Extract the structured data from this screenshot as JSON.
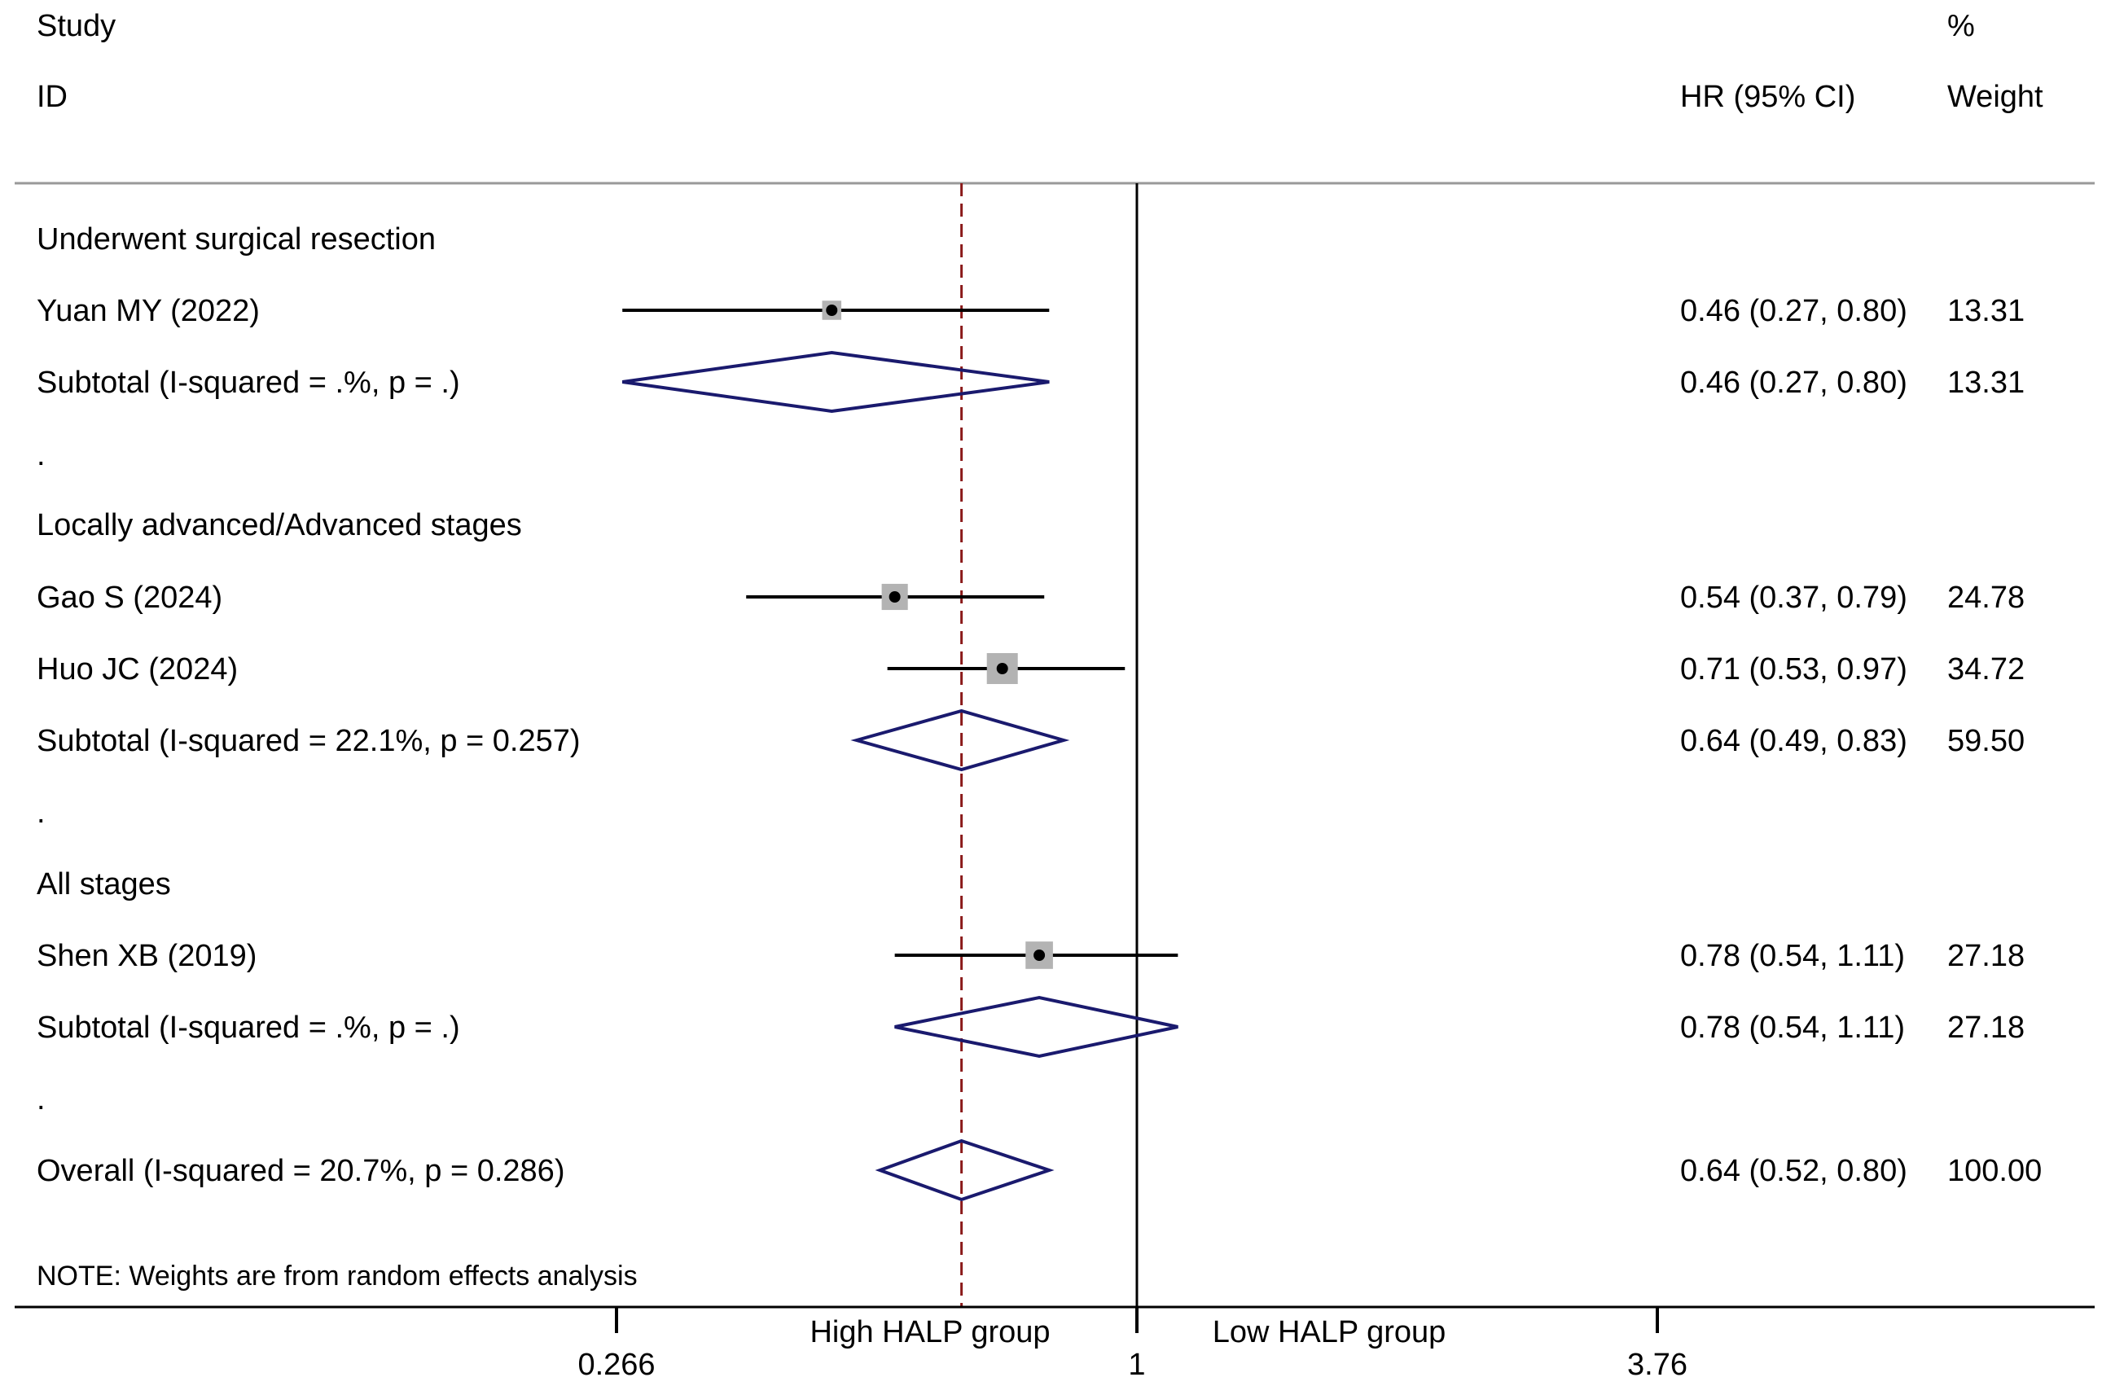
{
  "headers": {
    "study_line1": "Study",
    "study_line2": "ID",
    "pct_line1": "%",
    "ci_line2": "HR (95% CI)",
    "weight_line2": "Weight"
  },
  "note": "NOTE: Weights are from random effects analysis",
  "axis": {
    "tick_labels": [
      "0.266",
      "1",
      "3.76"
    ],
    "left_label": "High HALP group",
    "right_label": "Low HALP group"
  },
  "chart_data": {
    "type": "forest",
    "scale": "log",
    "xlim": [
      0.266,
      3.76
    ],
    "ticks": [
      0.266,
      1,
      3.76
    ],
    "null_line": 1,
    "overall_line": 0.64,
    "colors": {
      "diamond": "#1a1a6e",
      "overall_line": "#8b1a1a",
      "box_fill": "#b3b3b3",
      "ci_line": "#000000"
    },
    "rows": [
      {
        "kind": "group",
        "label": "Underwent surgical resection"
      },
      {
        "kind": "study",
        "label": "Yuan MY (2022)",
        "hr": 0.46,
        "lo": 0.27,
        "hi": 0.8,
        "weight": 13.31,
        "ci_text": "0.46 (0.27, 0.80)",
        "weight_text": "13.31"
      },
      {
        "kind": "subtotal",
        "label": "Subtotal  (I-squared = .%, p = .)",
        "hr": 0.46,
        "lo": 0.27,
        "hi": 0.8,
        "ci_text": "0.46 (0.27, 0.80)",
        "weight_text": "13.31"
      },
      {
        "kind": "spacer",
        "label": "."
      },
      {
        "kind": "group",
        "label": "Locally advanced/Advanced stages"
      },
      {
        "kind": "study",
        "label": "Gao S (2024)",
        "hr": 0.54,
        "lo": 0.37,
        "hi": 0.79,
        "weight": 24.78,
        "ci_text": "0.54 (0.37, 0.79)",
        "weight_text": "24.78"
      },
      {
        "kind": "study",
        "label": "Huo JC (2024)",
        "hr": 0.71,
        "lo": 0.53,
        "hi": 0.97,
        "weight": 34.72,
        "ci_text": "0.71 (0.53, 0.97)",
        "weight_text": "34.72"
      },
      {
        "kind": "subtotal",
        "label": "Subtotal  (I-squared = 22.1%, p = 0.257)",
        "hr": 0.64,
        "lo": 0.49,
        "hi": 0.83,
        "ci_text": "0.64 (0.49, 0.83)",
        "weight_text": "59.50"
      },
      {
        "kind": "spacer",
        "label": "."
      },
      {
        "kind": "group",
        "label": "All stages"
      },
      {
        "kind": "study",
        "label": "Shen XB (2019)",
        "hr": 0.78,
        "lo": 0.54,
        "hi": 1.11,
        "weight": 27.18,
        "ci_text": "0.78 (0.54, 1.11)",
        "weight_text": "27.18"
      },
      {
        "kind": "subtotal",
        "label": "Subtotal  (I-squared = .%, p = .)",
        "hr": 0.78,
        "lo": 0.54,
        "hi": 1.11,
        "ci_text": "0.78 (0.54, 1.11)",
        "weight_text": "27.18"
      },
      {
        "kind": "spacer",
        "label": "."
      },
      {
        "kind": "overall",
        "label": "Overall  (I-squared = 20.7%, p = 0.286)",
        "hr": 0.64,
        "lo": 0.52,
        "hi": 0.8,
        "ci_text": "0.64 (0.52, 0.80)",
        "weight_text": "100.00"
      }
    ]
  }
}
